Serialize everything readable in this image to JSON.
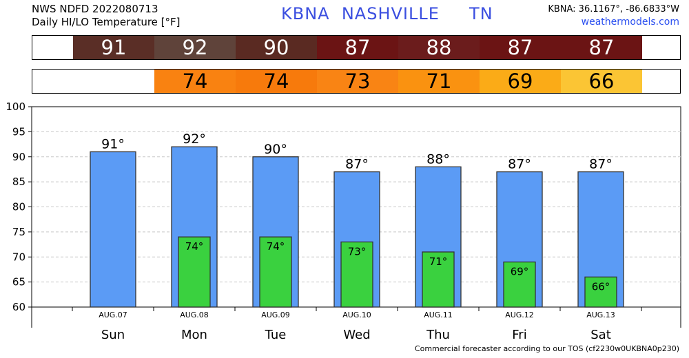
{
  "header": {
    "line1": "NWS NDFD 2022080713",
    "line2": "Daily HI/LO Temperature [°F]",
    "station": "KBNA  NASHVILLE     TN",
    "coords": "KBNA: 36.1167°, -86.6833°W",
    "site": "weathermodels.com"
  },
  "hi_strip": {
    "values": [
      "91",
      "92",
      "90",
      "87",
      "88",
      "87",
      "87"
    ],
    "colors": [
      "#5a2e26",
      "#5f433a",
      "#5a2a22",
      "#6b1414",
      "#6b1c1c",
      "#6b1414",
      "#6b1414"
    ]
  },
  "lo_strip": {
    "values": [
      "",
      "74",
      "74",
      "73",
      "71",
      "69",
      "66"
    ],
    "colors": [
      "#ffffff",
      "#f98211",
      "#f77a0c",
      "#f98414",
      "#fa9210",
      "#fbab17",
      "#fbc534"
    ]
  },
  "chart_data": {
    "type": "bar",
    "x": [
      "Sun",
      "Mon",
      "Tue",
      "Wed",
      "Thu",
      "Fri",
      "Sat"
    ],
    "dates": [
      "AUG.07",
      "AUG.08",
      "AUG.09",
      "AUG.10",
      "AUG.11",
      "AUG.12",
      "AUG.13"
    ],
    "series": [
      {
        "values": [
          91,
          92,
          90,
          87,
          88,
          87,
          87
        ],
        "labels": [
          "91°",
          "92°",
          "90°",
          "87°",
          "88°",
          "87°",
          "87°"
        ],
        "color": "#5b9bf5"
      },
      {
        "values": [
          null,
          74,
          74,
          73,
          71,
          69,
          66
        ],
        "labels": [
          "",
          "74°",
          "74°",
          "73°",
          "71°",
          "69°",
          "66°"
        ],
        "color": "#3ad13f"
      }
    ],
    "ylim": [
      60,
      100
    ],
    "yticks": [
      "60",
      "65",
      "70",
      "75",
      "80",
      "85",
      "90",
      "95",
      "100"
    ],
    "grid": true
  },
  "footer": "Commercial forecaster according to our TOS (cf2230w0UKBNA0p230)"
}
